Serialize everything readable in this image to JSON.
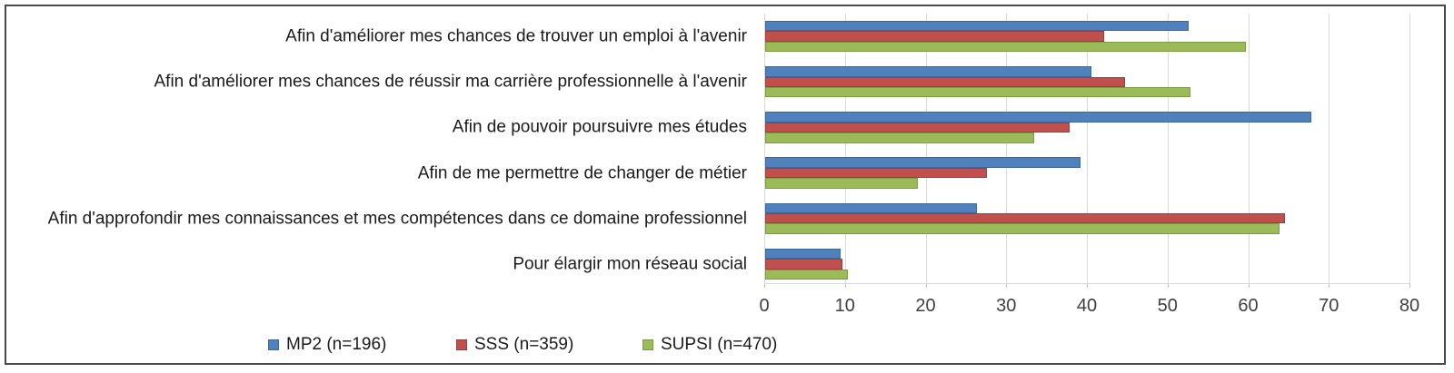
{
  "chart_data": {
    "type": "bar",
    "orientation": "horizontal",
    "title": "",
    "xlabel": "",
    "ylabel": "",
    "xlim": [
      0,
      80
    ],
    "x_ticks": [
      0,
      10,
      20,
      30,
      40,
      50,
      60,
      70,
      80
    ],
    "grid": "vertical gridlines on, light gray",
    "legend_position": "bottom-left",
    "gridline_color": "#d9d9d9",
    "categories": [
      "Afin d'améliorer mes chances de trouver un emploi à l'avenir",
      "Afin d'améliorer mes chances de réussir ma carrière professionnelle à l'avenir",
      "Afin de pouvoir poursuivre mes études",
      "Afin de me permettre de changer de métier",
      "Afin d'approfondir mes connaissances et mes compétences dans ce domaine professionnel",
      "Pour élargir mon réseau social"
    ],
    "series": [
      {
        "name": "MP2 (n=196)",
        "color": "#4f81bd",
        "border_color": "#3d679a",
        "values": [
          52.5,
          40.4,
          67.7,
          39.1,
          26.2,
          9.3
        ]
      },
      {
        "name": "SSS (n=359)",
        "color": "#c0504d",
        "border_color": "#9c3e3c",
        "values": [
          42.0,
          44.6,
          37.8,
          27.5,
          64.5,
          9.6
        ]
      },
      {
        "name": "SUPSI (n=470)",
        "color": "#9bbb59",
        "border_color": "#7d9a45",
        "values": [
          59.6,
          52.7,
          33.4,
          18.9,
          63.8,
          10.2
        ]
      }
    ]
  }
}
